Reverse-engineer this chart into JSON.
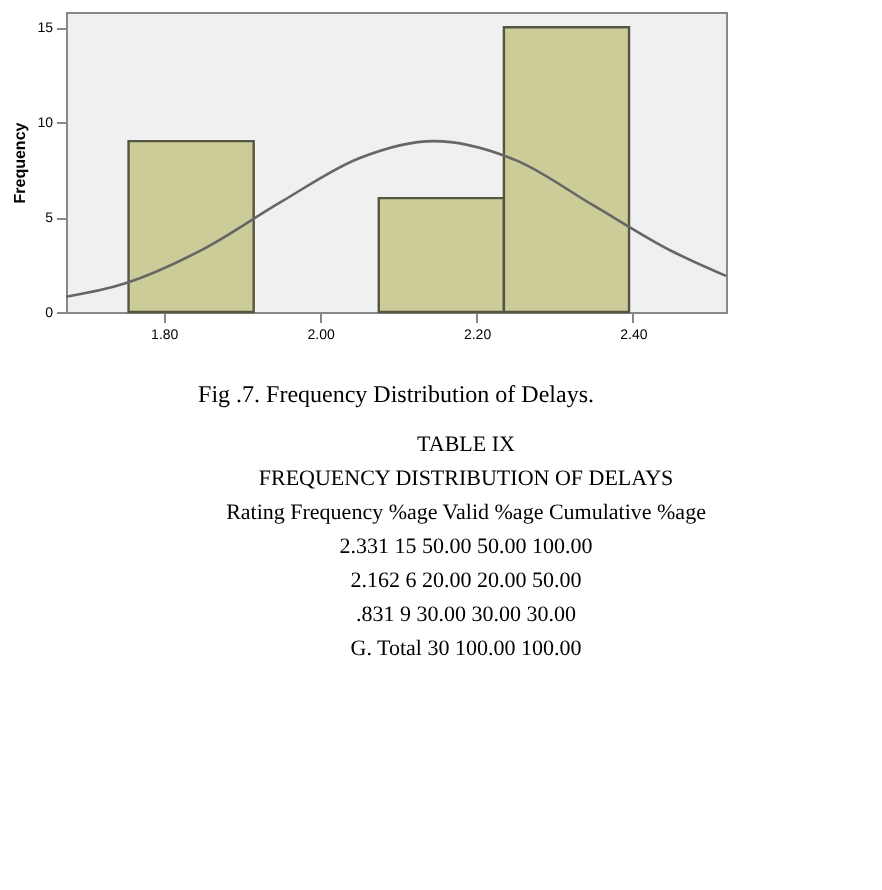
{
  "chart_data": {
    "type": "histogram",
    "title": "Fig .7. Frequency Distribution of Delays.",
    "ylabel": "Frequency",
    "bins": [
      1.755,
      1.915,
      2.075,
      2.235,
      2.395
    ],
    "values": [
      9,
      0,
      6,
      15
    ],
    "color": "#cccc99",
    "series": [
      {
        "type": "line",
        "color": "#666666",
        "x": [
          1.675,
          1.75,
          1.85,
          1.95,
          2.05,
          2.145,
          2.25,
          2.35,
          2.45,
          2.519
        ],
        "values": [
          0.8,
          1.5,
          3.3,
          5.8,
          8.1,
          9,
          8,
          5.6,
          3.2,
          1.9
        ]
      }
    ],
    "xlim": [
      1.675,
      2.519
    ],
    "xticks": [
      {
        "value": 1.8,
        "label": "1.80"
      },
      {
        "value": 2.0,
        "label": "2.00"
      },
      {
        "value": 2.2,
        "label": "2.20"
      },
      {
        "value": 2.4,
        "label": "2.40"
      }
    ],
    "ylim": [
      0,
      15.8
    ],
    "yticks": [
      0,
      5,
      10,
      15
    ],
    "grid": false,
    "annotations": [
      "TABLE IX",
      "FREQUENCY DISTRIBUTION OF DELAYS",
      "Rating    Frequency    %age    Valid %age    Cumulative %age",
      "2.331    15    50.00    50.00    100.00",
      "2.162    6    20.00    20.00    50.00",
      ".831    9    30.00    30.00    30.00",
      "G. Total    30    100.00    100.00"
    ]
  }
}
